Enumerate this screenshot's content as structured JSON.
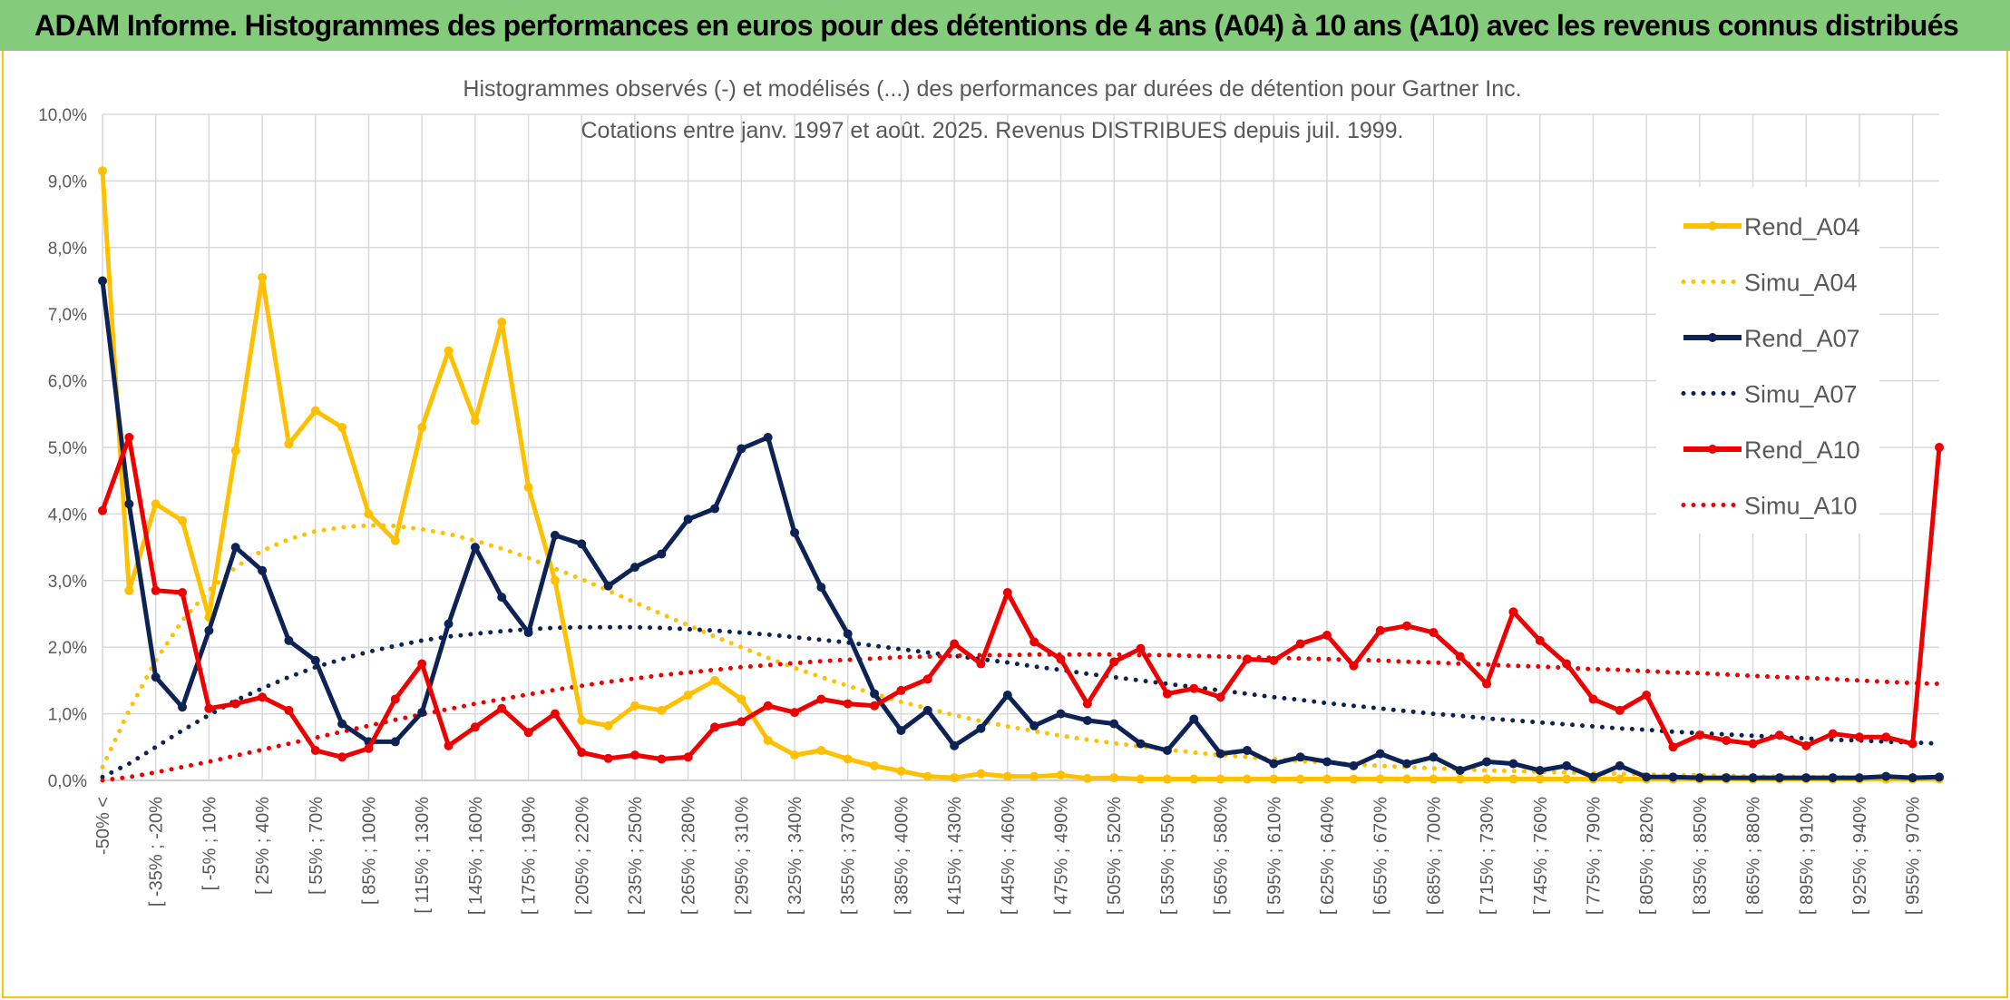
{
  "banner": {
    "text": "ADAM Informe. Histogrammes des performances en euros pour des détentions de 4 ans (A04) à 10 ans (A10) avec les revenus connus distribués"
  },
  "chart_data": {
    "type": "line",
    "title_line1": "Histogrammes observés (-) et modélisés (...) des performances par durées de détention pour Gartner Inc.",
    "title_line2": "Cotations entre janv. 1997 et août. 2025. Revenus DISTRIBUES depuis juil. 1999.",
    "ylim": [
      0,
      10
    ],
    "y_ticks": [
      "0,0%",
      "1,0%",
      "2,0%",
      "3,0%",
      "4,0%",
      "5,0%",
      "6,0%",
      "7,0%",
      "8,0%",
      "9,0%",
      "10,0%"
    ],
    "x_tick_labels": [
      "-50% <",
      "[ -35% ; -20%",
      "[ -5% ; 10%",
      "[ 25% ; 40%",
      "[ 55% ; 70%",
      "[ 85% ; 100%",
      "[ 115% ; 130%",
      "[ 145% ; 160%",
      "[ 175% ; 190%",
      "[ 205% ; 220%",
      "[ 235% ; 250%",
      "[ 265% ; 280%",
      "[ 295% ; 310%",
      "[ 325% ; 340%",
      "[ 355% ; 370%",
      "[ 385% ; 400%",
      "[ 415% ; 430%",
      "[ 445% ; 460%",
      "[ 475% ; 490%",
      "[ 505% ; 520%",
      "[ 535% ; 550%",
      "[ 565% ; 580%",
      "[ 595% ; 610%",
      "[ 625% ; 640%",
      "[ 655% ; 670%",
      "[ 685% ; 700%",
      "[ 715% ; 730%",
      "[ 745% ; 760%",
      "[ 775% ; 790%",
      "[ 805% ; 820%",
      "[ 835% ; 850%",
      "[ 865% ; 880%",
      "[ 895% ; 910%",
      "[ 925% ; 940%",
      "[ 955% ; 970%"
    ],
    "grid": true,
    "legend_position": "right",
    "series": [
      {
        "name": "Rend_A04",
        "style": "solid",
        "color": "#ffc000",
        "values": [
          9.15,
          2.85,
          4.15,
          3.9,
          2.45,
          4.95,
          7.55,
          5.05,
          5.55,
          5.3,
          4.0,
          3.6,
          5.3,
          6.45,
          5.4,
          6.88,
          4.4,
          3.0,
          0.9,
          0.82,
          1.12,
          1.05,
          1.28,
          1.5,
          1.22,
          0.6,
          0.38,
          0.45,
          0.32,
          0.22,
          0.14,
          0.06,
          0.04,
          0.1,
          0.06,
          0.06,
          0.08,
          0.03,
          0.04,
          0.02,
          0.02,
          0.02,
          0.02,
          0.02,
          0.02,
          0.02,
          0.02,
          0.02,
          0.02,
          0.02,
          0.02,
          0.02,
          0.02,
          0.02,
          0.02,
          0.02,
          0.02,
          0.02,
          0.02,
          0.02,
          0.02,
          0.02,
          0.02,
          0.02,
          0.02,
          0.02,
          0.02,
          0.02,
          0.02,
          0.02
        ]
      },
      {
        "name": "Simu_A04",
        "style": "dotted",
        "color": "#ffc000",
        "values": [
          0.2,
          1.05,
          1.8,
          2.4,
          2.85,
          3.2,
          3.45,
          3.62,
          3.74,
          3.8,
          3.83,
          3.82,
          3.77,
          3.7,
          3.6,
          3.48,
          3.34,
          3.18,
          3.02,
          2.85,
          2.67,
          2.5,
          2.33,
          2.16,
          2.0,
          1.84,
          1.69,
          1.55,
          1.42,
          1.3,
          1.18,
          1.08,
          0.98,
          0.89,
          0.81,
          0.74,
          0.67,
          0.61,
          0.56,
          0.51,
          0.46,
          0.42,
          0.38,
          0.35,
          0.32,
          0.29,
          0.27,
          0.24,
          0.22,
          0.2,
          0.18,
          0.17,
          0.15,
          0.14,
          0.13,
          0.12,
          0.11,
          0.1,
          0.09,
          0.08,
          0.08,
          0.07,
          0.06,
          0.06,
          0.05,
          0.05,
          0.04,
          0.04,
          0.04,
          0.03
        ]
      },
      {
        "name": "Rend_A07",
        "style": "solid",
        "color": "#0e2355",
        "values": [
          7.5,
          4.15,
          1.55,
          1.1,
          2.25,
          3.5,
          3.15,
          2.1,
          1.8,
          0.85,
          0.58,
          0.58,
          1.02,
          2.35,
          3.5,
          2.75,
          2.22,
          3.68,
          3.55,
          2.92,
          3.2,
          3.4,
          3.92,
          4.08,
          4.98,
          5.15,
          3.72,
          2.9,
          2.2,
          1.3,
          0.75,
          1.05,
          0.52,
          0.78,
          1.28,
          0.82,
          1.0,
          0.9,
          0.85,
          0.55,
          0.45,
          0.92,
          0.4,
          0.45,
          0.25,
          0.35,
          0.28,
          0.22,
          0.4,
          0.25,
          0.35,
          0.15,
          0.28,
          0.25,
          0.15,
          0.22,
          0.05,
          0.22,
          0.05,
          0.05,
          0.04,
          0.04,
          0.04,
          0.04,
          0.04,
          0.04,
          0.04,
          0.06,
          0.04,
          0.05
        ]
      },
      {
        "name": "Simu_A07",
        "style": "dotted",
        "color": "#0e2355",
        "values": [
          0.05,
          0.25,
          0.5,
          0.75,
          0.98,
          1.2,
          1.38,
          1.55,
          1.7,
          1.82,
          1.93,
          2.02,
          2.1,
          2.16,
          2.2,
          2.24,
          2.27,
          2.29,
          2.3,
          2.3,
          2.3,
          2.29,
          2.27,
          2.25,
          2.22,
          2.19,
          2.15,
          2.11,
          2.07,
          2.02,
          1.97,
          1.92,
          1.87,
          1.82,
          1.77,
          1.71,
          1.66,
          1.6,
          1.55,
          1.5,
          1.45,
          1.4,
          1.35,
          1.3,
          1.25,
          1.21,
          1.16,
          1.12,
          1.08,
          1.04,
          1.0,
          0.97,
          0.93,
          0.9,
          0.87,
          0.84,
          0.81,
          0.78,
          0.76,
          0.73,
          0.71,
          0.69,
          0.67,
          0.65,
          0.63,
          0.61,
          0.6,
          0.58,
          0.57,
          0.55
        ]
      },
      {
        "name": "Rend_A10",
        "style": "solid",
        "color": "#ee0000",
        "values": [
          4.05,
          5.15,
          2.85,
          2.82,
          1.08,
          1.15,
          1.25,
          1.05,
          0.45,
          0.35,
          0.48,
          1.22,
          1.75,
          0.52,
          0.8,
          1.08,
          0.72,
          1.0,
          0.42,
          0.33,
          0.38,
          0.32,
          0.35,
          0.8,
          0.88,
          1.12,
          1.02,
          1.22,
          1.15,
          1.12,
          1.35,
          1.52,
          2.05,
          1.75,
          2.82,
          2.08,
          1.82,
          1.15,
          1.78,
          1.98,
          1.3,
          1.38,
          1.25,
          1.82,
          1.8,
          2.05,
          2.18,
          1.72,
          2.25,
          2.32,
          2.22,
          1.86,
          1.45,
          2.53,
          2.1,
          1.75,
          1.22,
          1.05,
          1.28,
          0.5,
          0.68,
          0.6,
          0.55,
          0.68,
          0.52,
          0.7,
          0.65,
          0.65,
          0.55,
          5.0
        ]
      },
      {
        "name": "Simu_A10",
        "style": "dotted",
        "color": "#ee0000",
        "values": [
          0.0,
          0.05,
          0.12,
          0.2,
          0.28,
          0.37,
          0.46,
          0.55,
          0.64,
          0.73,
          0.82,
          0.91,
          0.99,
          1.07,
          1.15,
          1.22,
          1.29,
          1.36,
          1.42,
          1.48,
          1.53,
          1.58,
          1.62,
          1.66,
          1.7,
          1.73,
          1.76,
          1.79,
          1.81,
          1.83,
          1.85,
          1.86,
          1.87,
          1.88,
          1.88,
          1.89,
          1.89,
          1.89,
          1.89,
          1.88,
          1.88,
          1.87,
          1.86,
          1.85,
          1.84,
          1.83,
          1.82,
          1.81,
          1.8,
          1.78,
          1.77,
          1.75,
          1.74,
          1.72,
          1.71,
          1.69,
          1.67,
          1.66,
          1.64,
          1.62,
          1.61,
          1.59,
          1.57,
          1.55,
          1.54,
          1.52,
          1.5,
          1.48,
          1.46,
          1.45
        ]
      }
    ]
  }
}
